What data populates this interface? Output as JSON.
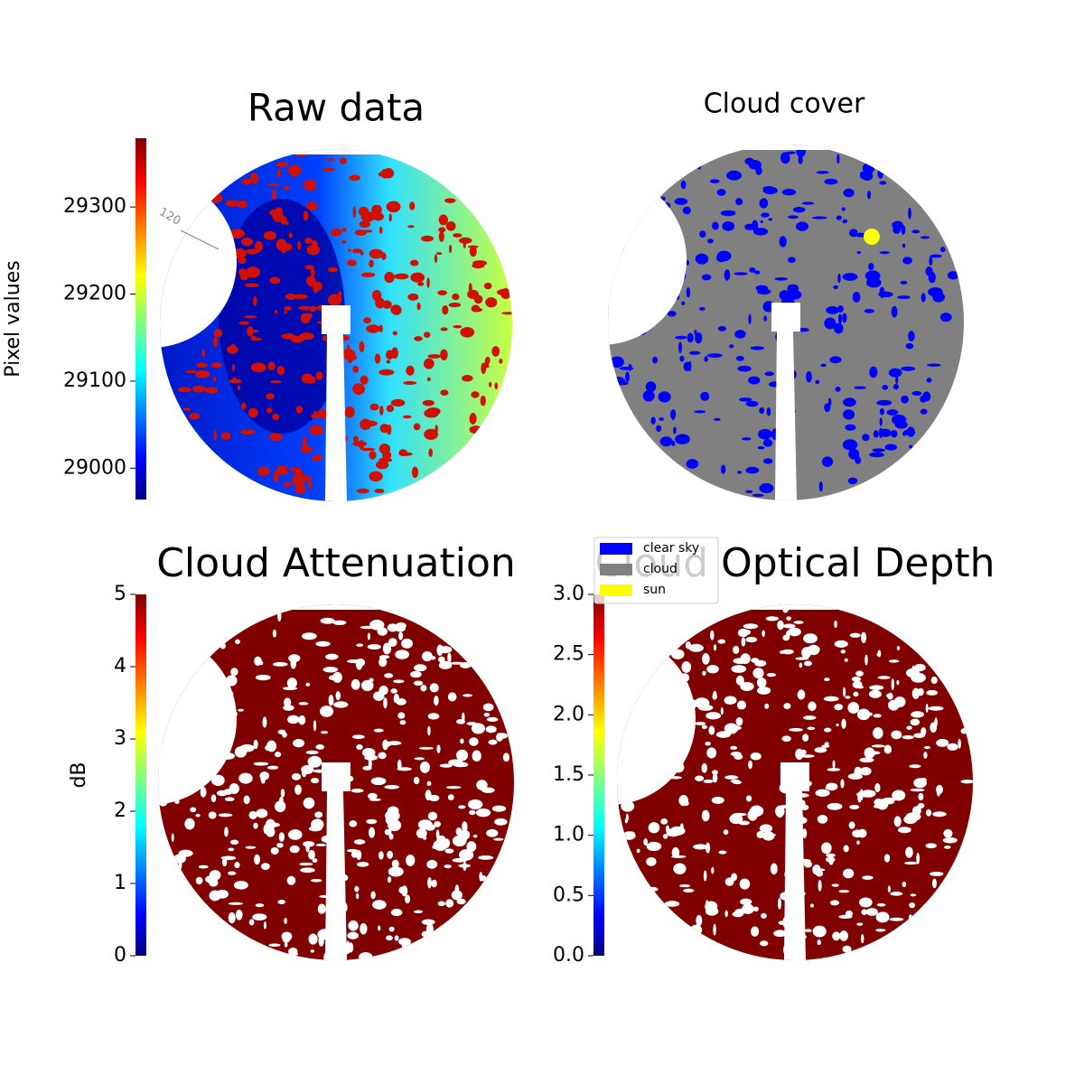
{
  "chart_data": [
    {
      "type": "image",
      "title": "Raw data",
      "colormap": "jet",
      "colorbar": {
        "label": "Pixel values",
        "lim": [
          28964,
          29379
        ],
        "ticks": [
          29000,
          29100,
          29200,
          29300
        ]
      },
      "annotations": [
        "120"
      ]
    },
    {
      "type": "mask",
      "title": "Cloud cover",
      "legend": [
        {
          "name": "clear sky",
          "color": "#0000ff"
        },
        {
          "name": "cloud",
          "color": "#808080"
        },
        {
          "name": "sun",
          "color": "#ffff00"
        }
      ]
    },
    {
      "type": "image",
      "title": "Cloud Attenuation",
      "colormap": "jet",
      "colorbar": {
        "label": "dB",
        "lim": [
          0,
          5
        ],
        "ticks": [
          0,
          1,
          2,
          3,
          4,
          5
        ]
      }
    },
    {
      "type": "image",
      "title": "Cloud Optical Depth",
      "colormap": "jet",
      "colorbar": {
        "lim": [
          0,
          3
        ],
        "ticks": [
          {
            "value": 0,
            "label": "0.0"
          },
          {
            "value": 0.5,
            "label": "0.5"
          },
          {
            "value": 1,
            "label": "1.0"
          },
          {
            "value": 1.5,
            "label": "1.5"
          },
          {
            "value": 2,
            "label": "2.0"
          },
          {
            "value": 2.5,
            "label": "2.5"
          },
          {
            "value": 3,
            "label": "3.0"
          }
        ]
      }
    }
  ]
}
